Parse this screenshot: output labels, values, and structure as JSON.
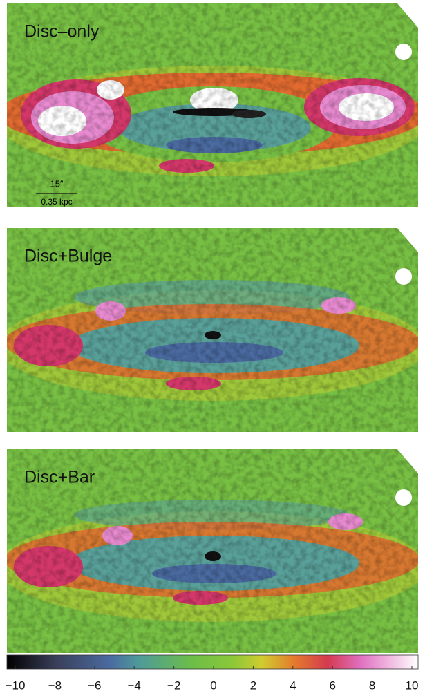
{
  "panels": [
    {
      "label": "Disc–only"
    },
    {
      "label": "Disc+Bulge"
    },
    {
      "label": "Disc+Bar"
    }
  ],
  "scale_bar": {
    "angle": "15″",
    "length": "0.35 kpc"
  },
  "colorbar": {
    "lim": [
      -10,
      10
    ],
    "ticks": [
      {
        "value": -10,
        "label": "−10"
      },
      {
        "value": -8,
        "label": "−8"
      },
      {
        "value": -6,
        "label": "−6"
      },
      {
        "value": -4,
        "label": "−4"
      },
      {
        "value": -2,
        "label": "−2"
      },
      0,
      2,
      4,
      6,
      8,
      10
    ]
  }
}
